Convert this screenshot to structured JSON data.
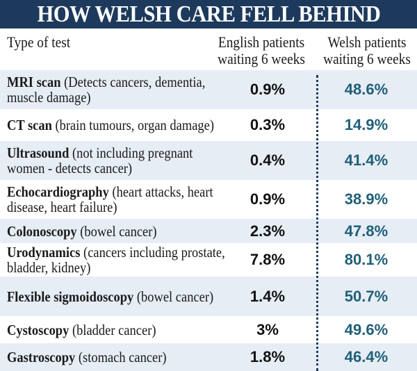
{
  "title": "HOW WELSH CARE FELL BEHIND",
  "headers": {
    "type": "Type of test",
    "english": "English patients\nwaiting 6 weeks",
    "welsh": "Welsh patients\nwaiting 6 weeks"
  },
  "colors": {
    "title_bg": "#1d3a5c",
    "row_shade": "#e6edf5",
    "welsh_value": "#1f5f78",
    "english_value": "#111111"
  },
  "rows": [
    {
      "name": "MRI scan",
      "desc": "(Detects cancers, dementia, muscle damage)",
      "english": "0.9%",
      "welsh": "48.6%"
    },
    {
      "name": "CT scan",
      "desc": "(brain tumours, organ damage)",
      "english": "0.3%",
      "welsh": "14.9%"
    },
    {
      "name": "Ultrasound",
      "desc": "(not including pregnant women - detects cancer)",
      "english": "0.4%",
      "welsh": "41.4%"
    },
    {
      "name": "Echocardiography",
      "desc": "(heart attacks, heart disease, heart failure)",
      "english": "0.9%",
      "welsh": "38.9%"
    },
    {
      "name": "Colonoscopy",
      "desc": "(bowel cancer)",
      "english": "2.3%",
      "welsh": "47.8%"
    },
    {
      "name": "Urodynamics",
      "desc": "(cancers including prostate, bladder, kidney)",
      "english": "7.8%",
      "welsh": "80.1%"
    },
    {
      "name": "Flexible sigmoidoscopy",
      "desc": "(bowel cancer)",
      "english": "1.4%",
      "welsh": "50.7%"
    },
    {
      "name": "Cystoscopy",
      "desc": "(bladder cancer)",
      "english": "3%",
      "welsh": "49.6%"
    },
    {
      "name": "Gastroscopy",
      "desc": "(stomach cancer)",
      "english": "1.8%",
      "welsh": "46.4%"
    }
  ],
  "chart_data": {
    "type": "table",
    "title": "HOW WELSH CARE FELL BEHIND",
    "columns": [
      "Type of test",
      "English patients waiting 6 weeks",
      "Welsh patients waiting 6 weeks"
    ],
    "categories": [
      "MRI scan",
      "CT scan",
      "Ultrasound",
      "Echocardiography",
      "Colonoscopy",
      "Urodynamics",
      "Flexible sigmoidoscopy",
      "Cystoscopy",
      "Gastroscopy"
    ],
    "series": [
      {
        "name": "English patients waiting 6 weeks",
        "unit": "%",
        "values": [
          0.9,
          0.3,
          0.4,
          0.9,
          2.3,
          7.8,
          1.4,
          3,
          1.8
        ]
      },
      {
        "name": "Welsh patients waiting 6 weeks",
        "unit": "%",
        "values": [
          48.6,
          14.9,
          41.4,
          38.9,
          47.8,
          80.1,
          50.7,
          49.6,
          46.4
        ]
      }
    ]
  }
}
